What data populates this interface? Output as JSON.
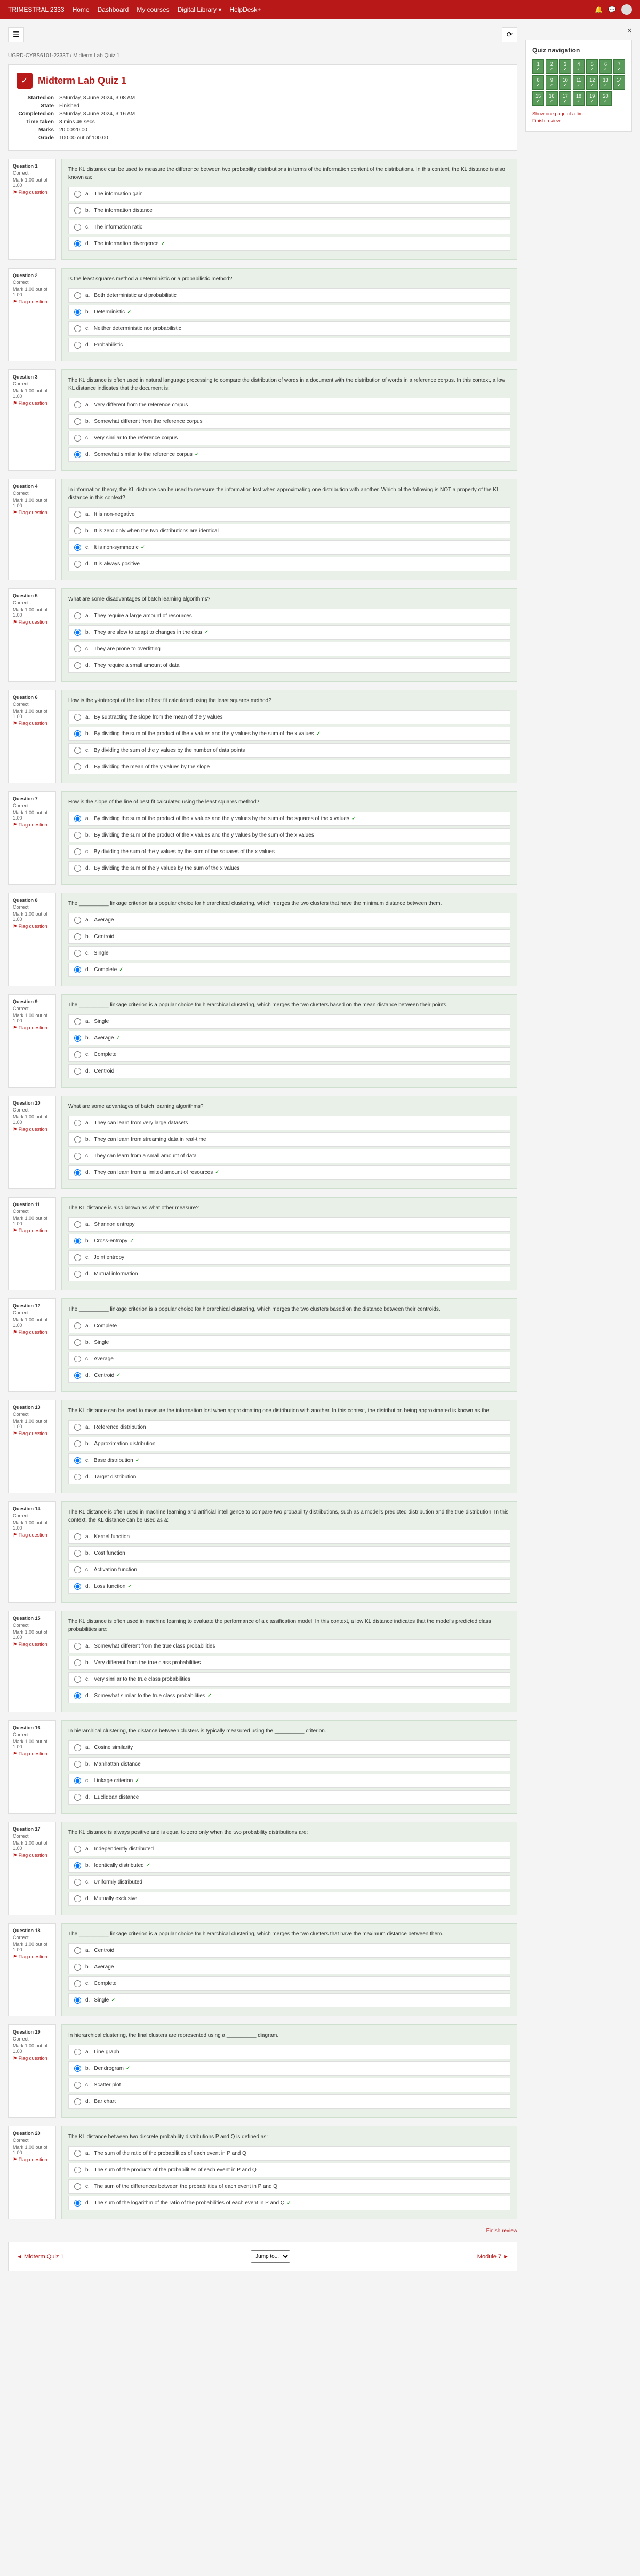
{
  "header": {
    "brand": "TRIMESTRAL 2333",
    "links": [
      "Home",
      "Dashboard",
      "My courses",
      "Digital Library ▾",
      "HelpDesk+"
    ]
  },
  "breadcrumb": "UGRD-CYBS6101-2333T / Midterm Lab Quiz 1",
  "quiz": {
    "title": "Midterm Lab Quiz 1",
    "info": [
      {
        "label": "Started on",
        "value": "Saturday, 8 June 2024, 3:08 AM"
      },
      {
        "label": "State",
        "value": "Finished"
      },
      {
        "label": "Completed on",
        "value": "Saturday, 8 June 2024, 3:16 AM"
      },
      {
        "label": "Time taken",
        "value": "8 mins 46 secs"
      },
      {
        "label": "Marks",
        "value": "20.00/20.00"
      },
      {
        "label": "Grade",
        "value": "100.00 out of 100.00"
      }
    ]
  },
  "nav": {
    "title": "Quiz navigation",
    "count": 20,
    "showOne": "Show one page at a time",
    "finish": "Finish review"
  },
  "questions": [
    {
      "num": "1",
      "status": "Correct",
      "mark": "Mark 1.00 out of 1.00",
      "text": "The KL distance can be used to measure the difference between two probability distributions in terms of the information content of the distributions. In this context, the KL distance is also known as:",
      "options": [
        {
          "l": "a.",
          "t": "The information gain",
          "c": false
        },
        {
          "l": "b.",
          "t": "The information distance",
          "c": false
        },
        {
          "l": "c.",
          "t": "The information ratio",
          "c": false
        },
        {
          "l": "d.",
          "t": "The information divergence",
          "c": true
        }
      ]
    },
    {
      "num": "2",
      "status": "Correct",
      "mark": "Mark 1.00 out of 1.00",
      "text": "Is the least squares method a deterministic or a probabilistic method?",
      "options": [
        {
          "l": "a.",
          "t": "Both deterministic and probabilistic",
          "c": false
        },
        {
          "l": "b.",
          "t": "Deterministic",
          "c": true
        },
        {
          "l": "c.",
          "t": "Neither deterministic nor probabilistic",
          "c": false
        },
        {
          "l": "d.",
          "t": "Probabilistic",
          "c": false
        }
      ]
    },
    {
      "num": "3",
      "status": "Correct",
      "mark": "Mark 1.00 out of 1.00",
      "text": "The KL distance is often used in natural language processing to compare the distribution of words in a document with the distribution of words in a reference corpus. In this context, a low KL distance indicates that the document is:",
      "options": [
        {
          "l": "a.",
          "t": "Very different from the reference corpus",
          "c": false
        },
        {
          "l": "b.",
          "t": "Somewhat different from the reference corpus",
          "c": false
        },
        {
          "l": "c.",
          "t": "Very similar to the reference corpus",
          "c": false
        },
        {
          "l": "d.",
          "t": "Somewhat similar to the reference corpus",
          "c": true
        }
      ]
    },
    {
      "num": "4",
      "status": "Correct",
      "mark": "Mark 1.00 out of 1.00",
      "text": "In information theory, the KL distance can be used to measure the information lost when approximating one distribution with another. Which of the following is NOT a property of the KL distance in this context?",
      "options": [
        {
          "l": "a.",
          "t": "It is non-negative",
          "c": false
        },
        {
          "l": "b.",
          "t": "It is zero only when the two distributions are identical",
          "c": false
        },
        {
          "l": "c.",
          "t": "It is non-symmetric",
          "c": true
        },
        {
          "l": "d.",
          "t": "It is always positive",
          "c": false
        }
      ]
    },
    {
      "num": "5",
      "status": "Correct",
      "mark": "Mark 1.00 out of 1.00",
      "text": "What are some disadvantages of batch learning algorithms?",
      "options": [
        {
          "l": "a.",
          "t": "They require a large amount of resources",
          "c": false
        },
        {
          "l": "b.",
          "t": "They are slow to adapt to changes in the data",
          "c": true
        },
        {
          "l": "c.",
          "t": "They are prone to overfitting",
          "c": false
        },
        {
          "l": "d.",
          "t": "They require a small amount of data",
          "c": false
        }
      ]
    },
    {
      "num": "6",
      "status": "Correct",
      "mark": "Mark 1.00 out of 1.00",
      "text": "How is the y-intercept of the line of best fit calculated using the least squares method?",
      "options": [
        {
          "l": "a.",
          "t": "By subtracting the slope from the mean of the y values",
          "c": false
        },
        {
          "l": "b.",
          "t": "By dividing the sum of the product of the x values and the y values by the sum of the x values",
          "c": true
        },
        {
          "l": "c.",
          "t": "By dividing the sum of the y values by the number of data points",
          "c": false
        },
        {
          "l": "d.",
          "t": "By dividing the mean of the y values by the slope",
          "c": false
        }
      ]
    },
    {
      "num": "7",
      "status": "Correct",
      "mark": "Mark 1.00 out of 1.00",
      "text": "How is the slope of the line of best fit calculated using the least squares method?",
      "options": [
        {
          "l": "a.",
          "t": "By dividing the sum of the product of the x values and the y values by the sum of the squares of the x values",
          "c": true
        },
        {
          "l": "b.",
          "t": "By dividing the sum of the product of the x values and the y values by the sum of the x values",
          "c": false
        },
        {
          "l": "c.",
          "t": "By dividing the sum of the y values by the sum of the squares of the x values",
          "c": false
        },
        {
          "l": "d.",
          "t": "By dividing the sum of the y values by the sum of the x values",
          "c": false
        }
      ]
    },
    {
      "num": "8",
      "status": "Correct",
      "mark": "Mark 1.00 out of 1.00",
      "text": "The __________ linkage criterion is a popular choice for hierarchical clustering, which merges the two clusters that have the minimum distance between them.",
      "options": [
        {
          "l": "a.",
          "t": "Average",
          "c": false
        },
        {
          "l": "b.",
          "t": "Centroid",
          "c": false
        },
        {
          "l": "c.",
          "t": "Single",
          "c": false
        },
        {
          "l": "d.",
          "t": "Complete",
          "c": true
        }
      ]
    },
    {
      "num": "9",
      "status": "Correct",
      "mark": "Mark 1.00 out of 1.00",
      "text": "The __________ linkage criterion is a popular choice for hierarchical clustering, which merges the two clusters based on the mean distance between their points.",
      "options": [
        {
          "l": "a.",
          "t": "Single",
          "c": false
        },
        {
          "l": "b.",
          "t": "Average",
          "c": true
        },
        {
          "l": "c.",
          "t": "Complete",
          "c": false
        },
        {
          "l": "d.",
          "t": "Centroid",
          "c": false
        }
      ]
    },
    {
      "num": "10",
      "status": "Correct",
      "mark": "Mark 1.00 out of 1.00",
      "text": "What are some advantages of batch learning algorithms?",
      "options": [
        {
          "l": "a.",
          "t": "They can learn from very large datasets",
          "c": false
        },
        {
          "l": "b.",
          "t": "They can learn from streaming data in real-time",
          "c": false
        },
        {
          "l": "c.",
          "t": "They can learn from a small amount of data",
          "c": false
        },
        {
          "l": "d.",
          "t": "They can learn from a limited amount of resources",
          "c": true
        }
      ]
    },
    {
      "num": "11",
      "status": "Correct",
      "mark": "Mark 1.00 out of 1.00",
      "text": "The KL distance is also known as what other measure?",
      "options": [
        {
          "l": "a.",
          "t": "Shannon entropy",
          "c": false
        },
        {
          "l": "b.",
          "t": "Cross-entropy",
          "c": true
        },
        {
          "l": "c.",
          "t": "Joint entropy",
          "c": false
        },
        {
          "l": "d.",
          "t": "Mutual information",
          "c": false
        }
      ]
    },
    {
      "num": "12",
      "status": "Correct",
      "mark": "Mark 1.00 out of 1.00",
      "text": "The __________ linkage criterion is a popular choice for hierarchical clustering, which merges the two clusters based on the distance between their centroids.",
      "options": [
        {
          "l": "a.",
          "t": "Complete",
          "c": false
        },
        {
          "l": "b.",
          "t": "Single",
          "c": false
        },
        {
          "l": "c.",
          "t": "Average",
          "c": false
        },
        {
          "l": "d.",
          "t": "Centroid",
          "c": true
        }
      ]
    },
    {
      "num": "13",
      "status": "Correct",
      "mark": "Mark 1.00 out of 1.00",
      "text": "The KL distance can be used to measure the information lost when approximating one distribution with another. In this context, the distribution being approximated is known as the:",
      "options": [
        {
          "l": "a.",
          "t": "Reference distribution",
          "c": false
        },
        {
          "l": "b.",
          "t": "Approximation distribution",
          "c": false
        },
        {
          "l": "c.",
          "t": "Base distribution",
          "c": true
        },
        {
          "l": "d.",
          "t": "Target distribution",
          "c": false
        }
      ]
    },
    {
      "num": "14",
      "status": "Correct",
      "mark": "Mark 1.00 out of 1.00",
      "text": "The KL distance is often used in machine learning and artificial intelligence to compare two probability distributions, such as a model's predicted distribution and the true distribution. In this context, the KL distance can be used as a:",
      "options": [
        {
          "l": "a.",
          "t": "Kernel function",
          "c": false
        },
        {
          "l": "b.",
          "t": "Cost function",
          "c": false
        },
        {
          "l": "c.",
          "t": "Activation function",
          "c": false
        },
        {
          "l": "d.",
          "t": "Loss function",
          "c": true
        }
      ]
    },
    {
      "num": "15",
      "status": "Correct",
      "mark": "Mark 1.00 out of 1.00",
      "text": "The KL distance is often used in machine learning to evaluate the performance of a classification model. In this context, a low KL distance indicates that the model's predicted class probabilities are:",
      "options": [
        {
          "l": "a.",
          "t": "Somewhat different from the true class probabilities",
          "c": false
        },
        {
          "l": "b.",
          "t": "Very different from the true class probabilities",
          "c": false
        },
        {
          "l": "c.",
          "t": "Very similar to the true class probabilities",
          "c": false
        },
        {
          "l": "d.",
          "t": "Somewhat similar to the true class probabilities",
          "c": true
        }
      ]
    },
    {
      "num": "16",
      "status": "Correct",
      "mark": "Mark 1.00 out of 1.00",
      "text": "In hierarchical clustering, the distance between clusters is typically measured using the __________ criterion.",
      "options": [
        {
          "l": "a.",
          "t": "Cosine similarity",
          "c": false
        },
        {
          "l": "b.",
          "t": "Manhattan distance",
          "c": false
        },
        {
          "l": "c.",
          "t": "Linkage criterion",
          "c": true
        },
        {
          "l": "d.",
          "t": "Euclidean distance",
          "c": false
        }
      ]
    },
    {
      "num": "17",
      "status": "Correct",
      "mark": "Mark 1.00 out of 1.00",
      "text": "The KL distance is always positive and is equal to zero only when the two probability distributions are:",
      "options": [
        {
          "l": "a.",
          "t": "Independently distributed",
          "c": false
        },
        {
          "l": "b.",
          "t": "Identically distributed",
          "c": true
        },
        {
          "l": "c.",
          "t": "Uniformly distributed",
          "c": false
        },
        {
          "l": "d.",
          "t": "Mutually exclusive",
          "c": false
        }
      ]
    },
    {
      "num": "18",
      "status": "Correct",
      "mark": "Mark 1.00 out of 1.00",
      "text": "The __________ linkage criterion is a popular choice for hierarchical clustering, which merges the two clusters that have the maximum distance between them.",
      "options": [
        {
          "l": "a.",
          "t": "Centroid",
          "c": false
        },
        {
          "l": "b.",
          "t": "Average",
          "c": false
        },
        {
          "l": "c.",
          "t": "Complete",
          "c": false
        },
        {
          "l": "d.",
          "t": "Single",
          "c": true
        }
      ]
    },
    {
      "num": "19",
      "status": "Correct",
      "mark": "Mark 1.00 out of 1.00",
      "text": "In hierarchical clustering, the final clusters are represented using a __________ diagram.",
      "options": [
        {
          "l": "a.",
          "t": "Line graph",
          "c": false
        },
        {
          "l": "b.",
          "t": "Dendrogram",
          "c": true
        },
        {
          "l": "c.",
          "t": "Scatter plot",
          "c": false
        },
        {
          "l": "d.",
          "t": "Bar chart",
          "c": false
        }
      ]
    },
    {
      "num": "20",
      "status": "Correct",
      "mark": "Mark 1.00 out of 1.00",
      "text": "The KL distance between two discrete probability distributions P and Q is defined as:",
      "options": [
        {
          "l": "a.",
          "t": "The sum of the ratio of the probabilities of each event in P and Q",
          "c": false
        },
        {
          "l": "b.",
          "t": "The sum of the products of the probabilities of each event in P and Q",
          "c": false
        },
        {
          "l": "c.",
          "t": "The sum of the differences between the probabilities of each event in P and Q",
          "c": false
        },
        {
          "l": "d.",
          "t": "The sum of the logarithm of the ratio of the probabilities of each event in P and Q",
          "c": true
        }
      ]
    }
  ],
  "flagText": "Flag question",
  "finishReview": "Finish review",
  "bottomNav": {
    "prev": "◄ Midterm Quiz 1",
    "jump": "Jump to...",
    "next": "Module 7 ►"
  }
}
